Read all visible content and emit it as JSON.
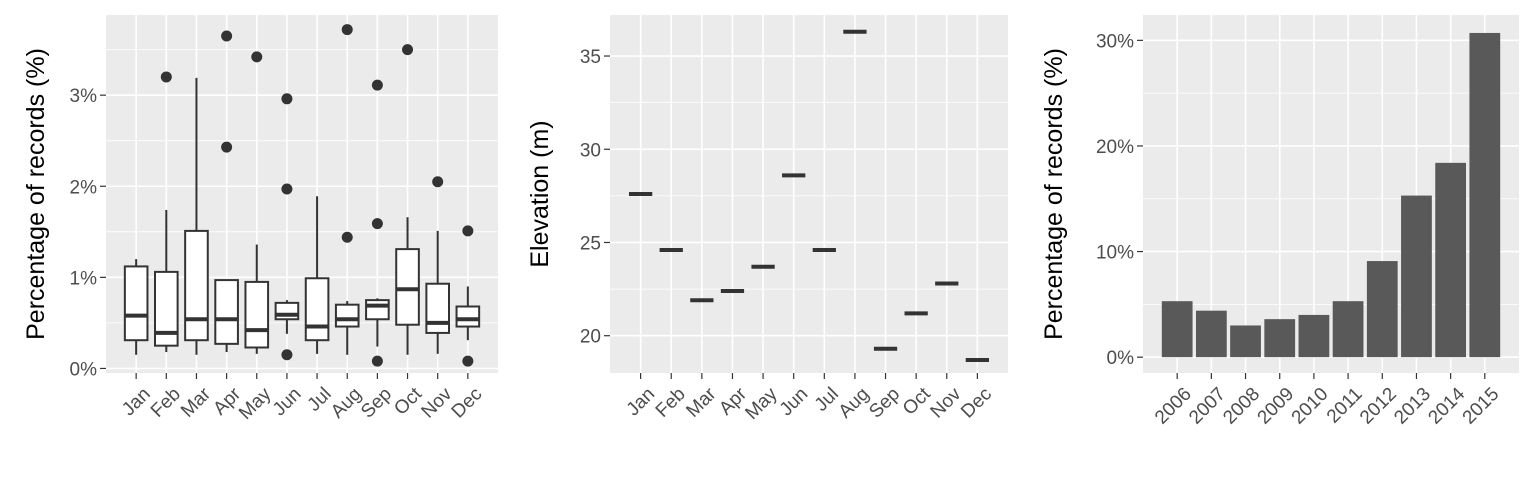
{
  "chart_data": [
    {
      "type": "box",
      "ylabel": "Percentage of records (%)",
      "xlabel": "",
      "ylim": [
        -0.05,
        3.88
      ],
      "yticks": [
        0,
        1,
        2,
        3
      ],
      "ytick_labels": [
        "0%",
        "1%",
        "2%",
        "3%"
      ],
      "grid": true,
      "categories": [
        "Jan",
        "Feb",
        "Mar",
        "Apr",
        "May",
        "Jun",
        "Jul",
        "Aug",
        "Sep",
        "Oct",
        "Nov",
        "Dec"
      ],
      "boxes": [
        {
          "min": 0.15,
          "q1": 0.31,
          "median": 0.58,
          "q3": 1.12,
          "max": 1.2,
          "outliers": []
        },
        {
          "min": 0.18,
          "q1": 0.25,
          "median": 0.39,
          "q3": 1.06,
          "max": 1.74,
          "outliers": [
            3.2
          ]
        },
        {
          "min": 0.15,
          "q1": 0.31,
          "median": 0.54,
          "q3": 1.51,
          "max": 3.19,
          "outliers": []
        },
        {
          "min": 0.18,
          "q1": 0.27,
          "median": 0.54,
          "q3": 0.97,
          "max": 0.97,
          "outliers": [
            2.43,
            3.65
          ]
        },
        {
          "min": 0.16,
          "q1": 0.23,
          "median": 0.42,
          "q3": 0.95,
          "max": 1.36,
          "outliers": [
            3.42
          ]
        },
        {
          "min": 0.38,
          "q1": 0.54,
          "median": 0.59,
          "q3": 0.72,
          "max": 0.75,
          "outliers": [
            0.15,
            1.97,
            2.96
          ]
        },
        {
          "min": 0.16,
          "q1": 0.31,
          "median": 0.46,
          "q3": 0.99,
          "max": 1.89,
          "outliers": []
        },
        {
          "min": 0.15,
          "q1": 0.46,
          "median": 0.54,
          "q3": 0.7,
          "max": 0.74,
          "outliers": [
            1.44,
            3.72
          ]
        },
        {
          "min": 0.24,
          "q1": 0.54,
          "median": 0.69,
          "q3": 0.75,
          "max": 0.77,
          "outliers": [
            0.08,
            1.59,
            3.11
          ]
        },
        {
          "min": 0.15,
          "q1": 0.48,
          "median": 0.87,
          "q3": 1.31,
          "max": 1.66,
          "outliers": [
            3.5
          ]
        },
        {
          "min": 0.16,
          "q1": 0.39,
          "median": 0.5,
          "q3": 0.93,
          "max": 1.51,
          "outliers": [
            2.05
          ]
        },
        {
          "min": 0.31,
          "q1": 0.46,
          "median": 0.54,
          "q3": 0.68,
          "max": 0.9,
          "outliers": [
            0.08,
            1.51
          ]
        }
      ]
    },
    {
      "type": "errorbar",
      "ylabel": "Elevation (m)",
      "xlabel": "",
      "ylim": [
        18.0,
        37.2
      ],
      "yticks": [
        20,
        25,
        30,
        35
      ],
      "ytick_labels": [
        "20",
        "25",
        "30",
        "35"
      ],
      "grid": true,
      "categories": [
        "Jan",
        "Feb",
        "Mar",
        "Apr",
        "May",
        "Jun",
        "Jul",
        "Aug",
        "Sep",
        "Oct",
        "Nov",
        "Dec"
      ],
      "values": [
        27.6,
        24.6,
        21.9,
        22.4,
        23.7,
        28.6,
        24.6,
        36.3,
        19.3,
        21.2,
        22.8,
        18.7
      ]
    },
    {
      "type": "bar",
      "ylabel": "Percentage of records (%)",
      "xlabel": "",
      "ylim": [
        -1.5,
        32.4
      ],
      "yticks": [
        0,
        10,
        20,
        30
      ],
      "ytick_labels": [
        "0%",
        "10%",
        "20%",
        "30%"
      ],
      "grid": true,
      "categories": [
        "2006",
        "2007",
        "2008",
        "2009",
        "2010",
        "2011",
        "2012",
        "2013",
        "2014",
        "2015"
      ],
      "values": [
        5.3,
        4.4,
        3.0,
        3.6,
        4.0,
        5.3,
        9.1,
        15.3,
        18.4,
        30.7
      ]
    }
  ]
}
